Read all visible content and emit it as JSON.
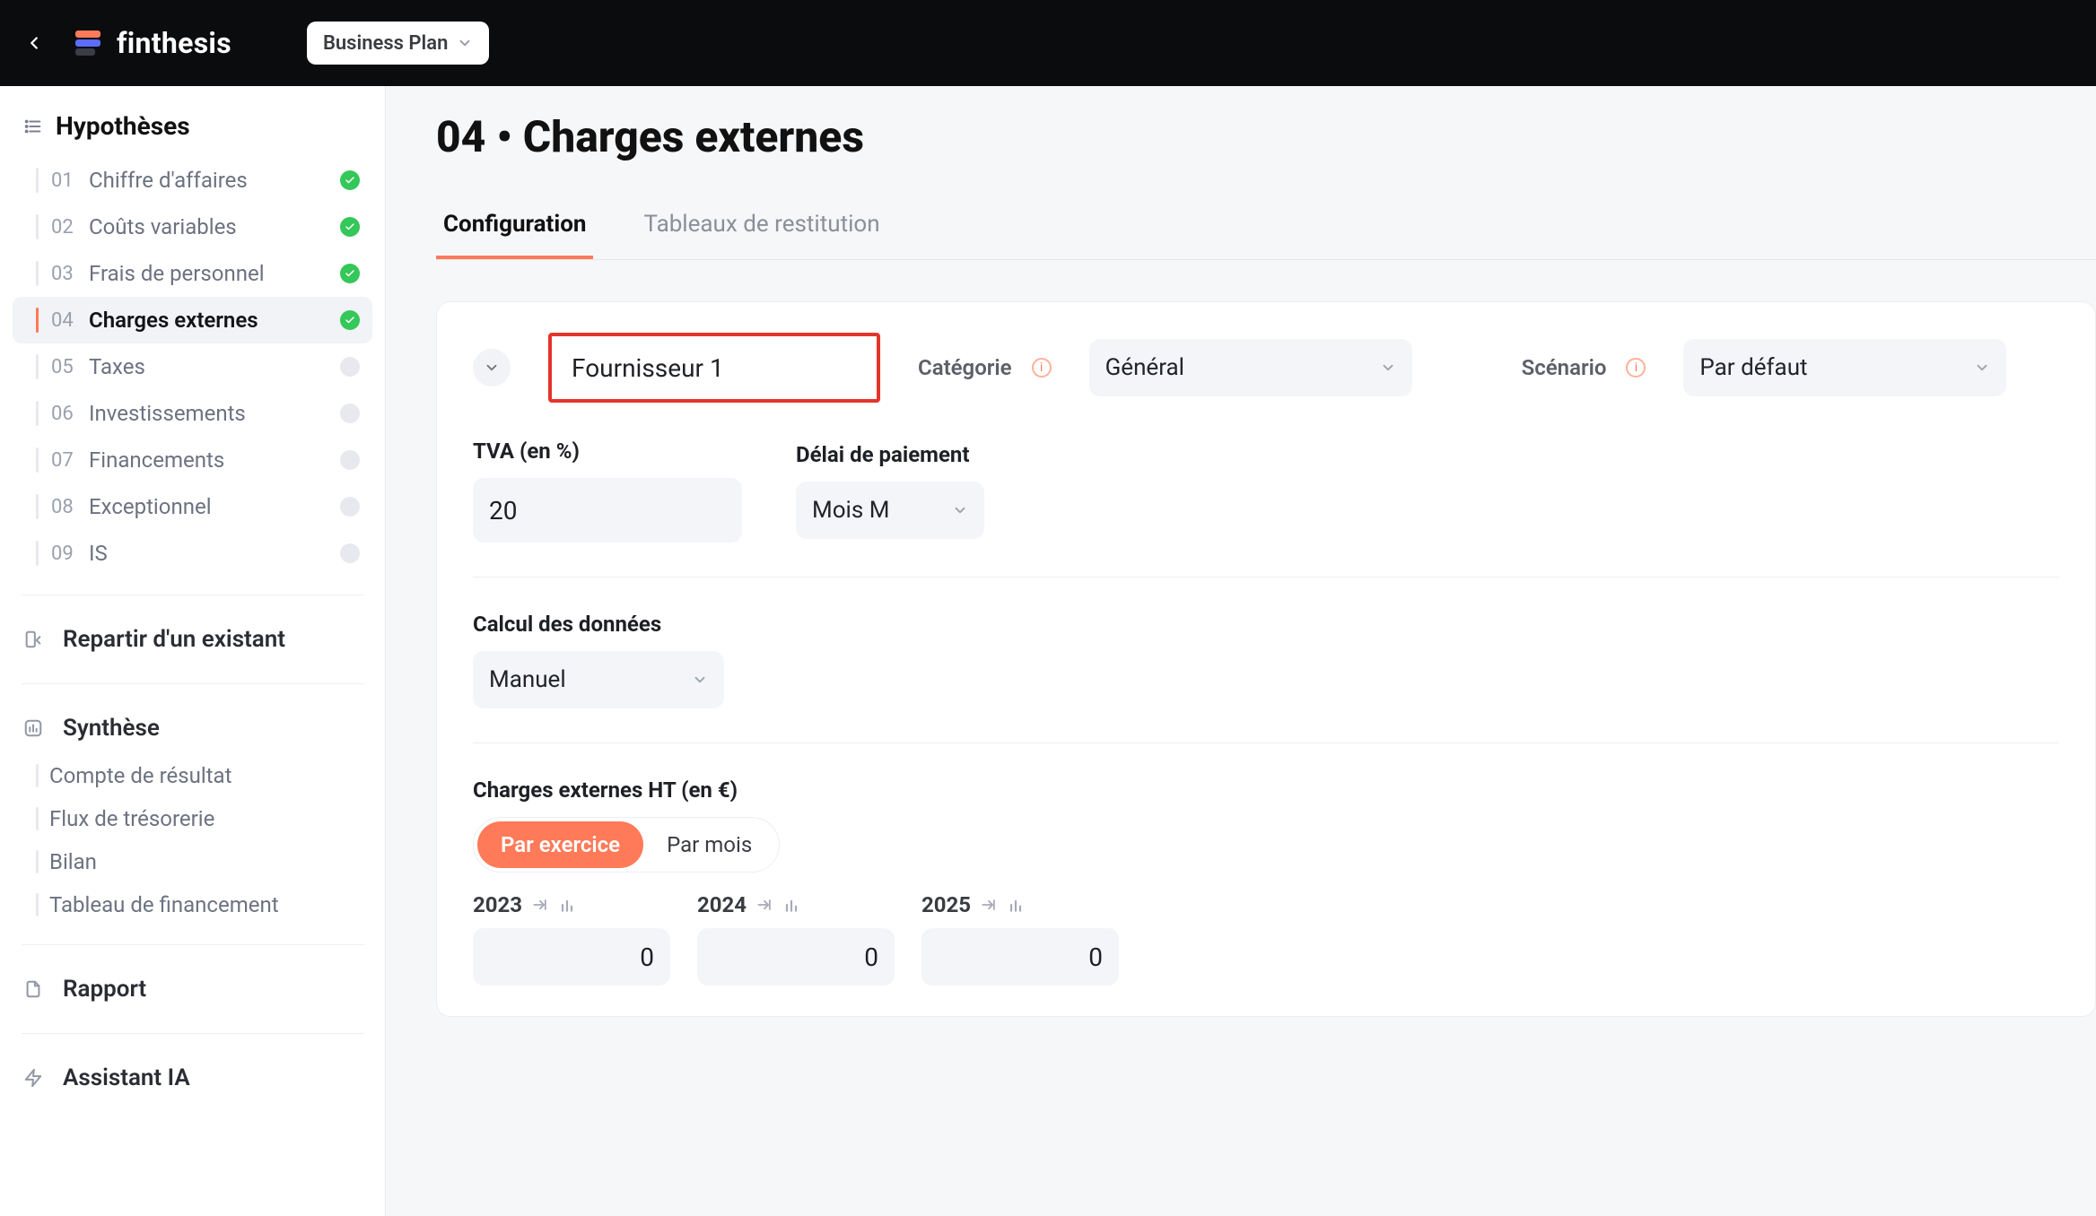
{
  "brand": "finthesis",
  "plan_dropdown": {
    "label": "Business Plan"
  },
  "sidebar": {
    "sections": {
      "hypotheses_title": "Hypothèses",
      "items": [
        {
          "num": "01",
          "label": "Chiffre d'affaires",
          "status": "complete"
        },
        {
          "num": "02",
          "label": "Coûts variables",
          "status": "complete"
        },
        {
          "num": "03",
          "label": "Frais de personnel",
          "status": "complete"
        },
        {
          "num": "04",
          "label": "Charges externes",
          "status": "complete",
          "active": true
        },
        {
          "num": "05",
          "label": "Taxes",
          "status": "pending"
        },
        {
          "num": "06",
          "label": "Investissements",
          "status": "pending"
        },
        {
          "num": "07",
          "label": "Financements",
          "status": "pending"
        },
        {
          "num": "08",
          "label": "Exceptionnel",
          "status": "pending"
        },
        {
          "num": "09",
          "label": "IS",
          "status": "pending"
        }
      ],
      "restart_label": "Repartir d'un existant",
      "synthese_title": "Synthèse",
      "synth_items": [
        "Compte de résultat",
        "Flux de trésorerie",
        "Bilan",
        "Tableau de financement"
      ],
      "report_label": "Rapport",
      "assistant_label": "Assistant IA"
    }
  },
  "page": {
    "title": "04 • Charges externes",
    "tabs": {
      "config": "Configuration",
      "restitution": "Tableaux de restitution",
      "active": "config"
    },
    "supplier_name": "Fournisseur 1",
    "category": {
      "label": "Catégorie",
      "value": "Général"
    },
    "scenario": {
      "label": "Scénario",
      "value": "Par défaut"
    },
    "tva": {
      "label": "TVA (en %)",
      "value": "20"
    },
    "delai": {
      "label": "Délai de paiement",
      "value": "Mois M"
    },
    "calc": {
      "label": "Calcul des données",
      "value": "Manuel"
    },
    "charges": {
      "label": "Charges externes HT (en €)",
      "segment": {
        "ex": "Par exercice",
        "mois": "Par mois",
        "active": "ex"
      },
      "years": [
        {
          "year": "2023",
          "value": "0"
        },
        {
          "year": "2024",
          "value": "0"
        },
        {
          "year": "2025",
          "value": "0"
        }
      ]
    }
  },
  "colors": {
    "accent": "#ff7a59",
    "danger_border": "#e4352b",
    "success": "#34c759",
    "text_muted": "#9aa0ad",
    "panel_bg": "#f3f5f9"
  }
}
